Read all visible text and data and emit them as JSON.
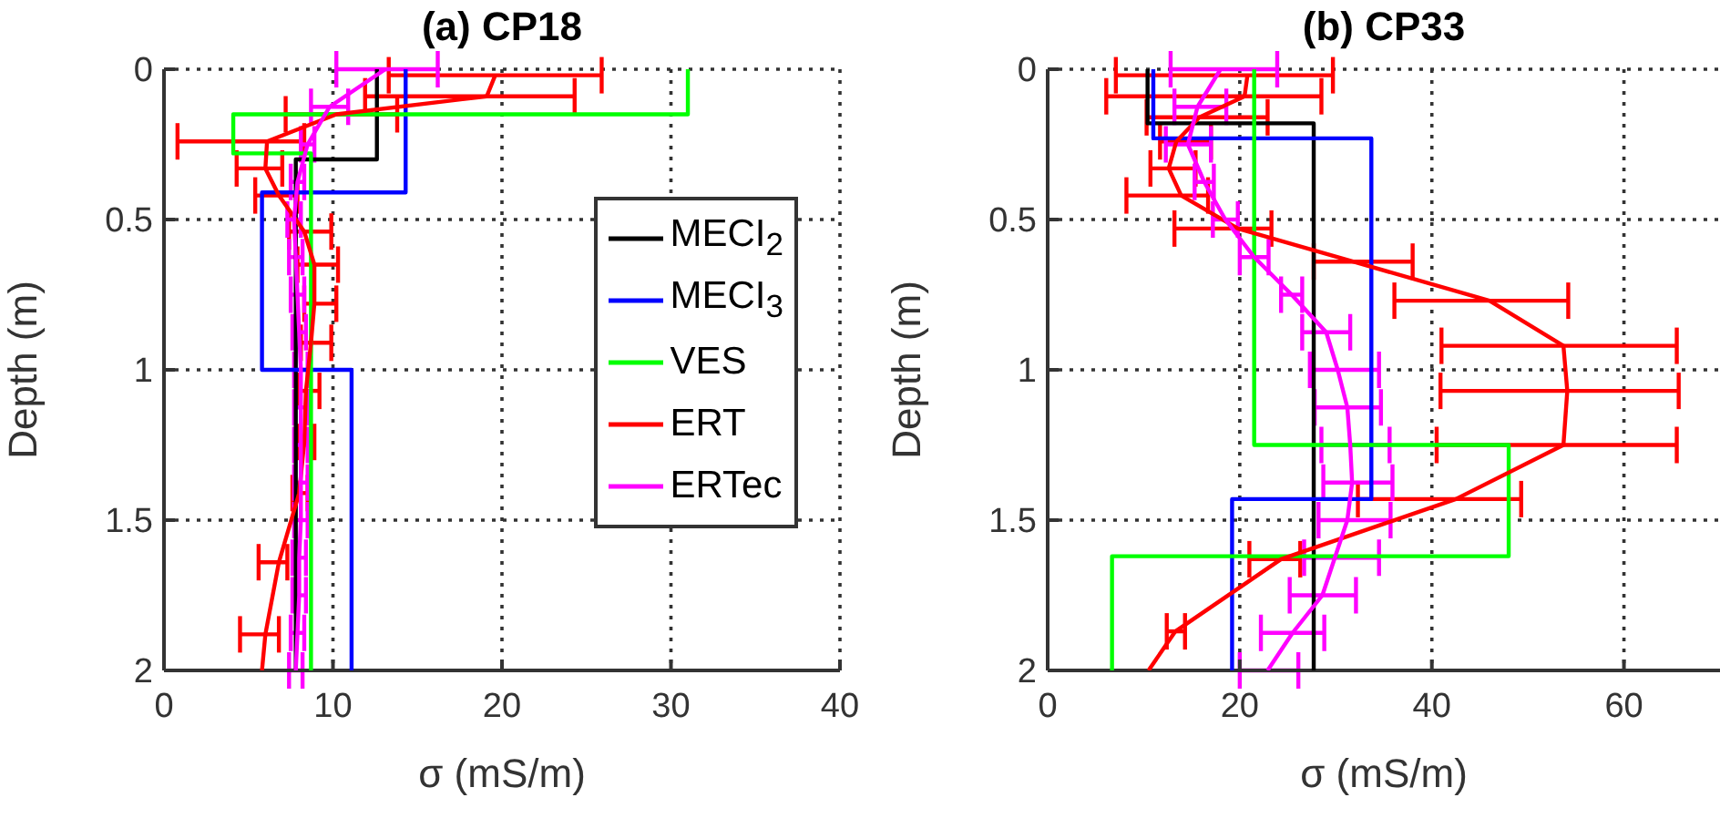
{
  "chart_data": [
    {
      "type": "line",
      "title": "(a) CP18",
      "xlabel": "σ (mS/m)",
      "ylabel": "Depth (m)",
      "xlim": [
        0,
        40
      ],
      "xticks": [
        0,
        10,
        20,
        30,
        40
      ],
      "ylim": [
        2,
        0
      ],
      "yticks": [
        0,
        0.5,
        1,
        1.5,
        2
      ],
      "grid": true,
      "legend": "right",
      "series": [
        {
          "name": "MECI$_{2}$",
          "color": "#000000",
          "x": [
            12.6,
            12.6,
            7.8,
            7.8
          ],
          "values": [
            0,
            0.3,
            0.3,
            2
          ]
        },
        {
          "name": "MECI$_{3}$",
          "color": "#0000ff",
          "x": [
            14.3,
            14.3,
            5.8,
            5.8,
            11.1,
            11.1
          ],
          "values": [
            0,
            0.41,
            0.41,
            1,
            1,
            2
          ]
        },
        {
          "name": "VES",
          "color": "#00ff00",
          "x": [
            31,
            31,
            4.1,
            4.1,
            8.7,
            8.7
          ],
          "values": [
            0,
            0.15,
            0.15,
            0.28,
            0.28,
            2
          ]
        },
        {
          "name": "ERT",
          "color": "#ff0000",
          "x": [
            19.6,
            19.1,
            10.2,
            6.1,
            6.0,
            6.8,
            8.3,
            8.9,
            8.9,
            8.7,
            8.4,
            8.3,
            8.0,
            6.8,
            6.0,
            5.8
          ],
          "values": [
            0.02,
            0.09,
            0.15,
            0.24,
            0.33,
            0.42,
            0.54,
            0.65,
            0.78,
            0.91,
            1.07,
            1.24,
            1.41,
            1.64,
            1.88,
            2
          ],
          "xerrors": [
            [
              13.3,
              25.9
            ],
            [
              11.9,
              24.3
            ],
            [
              7.2,
              13.8
            ],
            [
              0.8,
              8.3
            ],
            [
              4.3,
              7.0
            ],
            [
              5.4,
              7.9
            ],
            [
              7.4,
              9.9
            ],
            [
              7.9,
              10.3
            ],
            [
              8.3,
              10.2
            ],
            [
              8.1,
              9.9
            ],
            [
              8.0,
              9.2
            ],
            [
              7.9,
              8.9
            ],
            [
              7.6,
              8.5
            ],
            [
              5.6,
              7.3
            ],
            [
              4.5,
              6.8
            ],
            null
          ]
        },
        {
          "name": "ERTec",
          "color": "#ff00ff",
          "x": [
            13.1,
            9.8,
            8.5,
            7.9,
            7.7,
            7.8,
            7.9,
            8.0,
            8.1,
            8.1,
            8.1,
            8.1,
            8.1,
            8.0,
            8.0,
            7.9,
            7.8
          ],
          "values": [
            0,
            0.125,
            0.25,
            0.375,
            0.5,
            0.625,
            0.75,
            0.875,
            1,
            1.125,
            1.25,
            1.375,
            1.5,
            1.625,
            1.75,
            1.875,
            2
          ],
          "xerrors": [
            [
              10.2,
              16.2
            ],
            [
              8.7,
              10.9
            ],
            [
              8.1,
              8.9
            ],
            0.4,
            0.4,
            0.4,
            0.4,
            0.4,
            0.4,
            0.4,
            0.4,
            0.4,
            0.4,
            0.4,
            0.4,
            0.4,
            0.4
          ]
        }
      ]
    },
    {
      "type": "line",
      "title": "(b) CP33",
      "xlabel": "σ (mS/m)",
      "ylabel": "Depth (m)",
      "xlim": [
        0,
        70
      ],
      "xticks": [
        0,
        20,
        40,
        60
      ],
      "ylim": [
        2,
        0
      ],
      "yticks": [
        0,
        0.5,
        1,
        1.5,
        2
      ],
      "grid": true,
      "series": [
        {
          "color": "#000000",
          "x": [
            10.4,
            10.4,
            27.7,
            27.7
          ],
          "values": [
            0,
            0.18,
            0.18,
            2
          ]
        },
        {
          "color": "#0000ff",
          "x": [
            11.0,
            11.0,
            33.7,
            33.7,
            19.2,
            19.2
          ],
          "values": [
            0,
            0.23,
            0.23,
            1.43,
            1.43,
            2
          ]
        },
        {
          "color": "#00ff00",
          "x": [
            21.5,
            21.5,
            48.0,
            48.0,
            6.7,
            6.7
          ],
          "values": [
            0,
            1.25,
            1.25,
            1.62,
            1.62,
            2
          ]
        },
        {
          "color": "#ff0000",
          "x": [
            20.8,
            20.5,
            15.8,
            13.4,
            12.6,
            13.9,
            19.8,
            31.8,
            46.0,
            53.7,
            54.1,
            53.7,
            42.5,
            24.3,
            13.3,
            10.5
          ],
          "values": [
            0.02,
            0.09,
            0.16,
            0.24,
            0.33,
            0.42,
            0.53,
            0.64,
            0.77,
            0.92,
            1.07,
            1.25,
            1.43,
            1.63,
            1.87,
            2
          ],
          "xerrors": [
            [
              7.1,
              29.7
            ],
            [
              6.1,
              28.5
            ],
            [
              10.3,
              22.9
            ],
            [
              11.7,
              17.0
            ],
            [
              10.7,
              15.4
            ],
            [
              8.2,
              16.7
            ],
            [
              13.2,
              23.3
            ],
            [
              27.7,
              38.0
            ],
            [
              36.1,
              54.2
            ],
            [
              41.0,
              65.5
            ],
            [
              40.9,
              65.7
            ],
            [
              40.5,
              65.5
            ],
            [
              32.3,
              49.3
            ],
            [
              21.0,
              26.3
            ],
            [
              12.4,
              14.3
            ],
            null
          ]
        },
        {
          "color": "#ff00ff",
          "x": [
            18.0,
            15.6,
            14.6,
            16.3,
            18.5,
            21.5,
            25.4,
            29.0,
            30.2,
            31.2,
            31.5,
            31.7,
            31.2,
            29.9,
            28.6,
            25.5,
            22.9
          ],
          "values": [
            0,
            0.125,
            0.25,
            0.375,
            0.5,
            0.625,
            0.75,
            0.875,
            1,
            1.125,
            1.25,
            1.375,
            1.5,
            1.625,
            1.75,
            1.875,
            2
          ],
          "xerrors": [
            [
              12.8,
              23.9
            ],
            [
              13.2,
              18.6
            ],
            [
              12.3,
              17.0
            ],
            [
              15.3,
              17.3
            ],
            [
              17.2,
              19.8
            ],
            [
              20.0,
              23.0
            ],
            [
              24.3,
              26.5
            ],
            [
              26.5,
              31.5
            ],
            [
              27.3,
              34.5
            ],
            [
              27.8,
              34.7
            ],
            [
              28.5,
              35.6
            ],
            [
              28.7,
              35.9
            ],
            [
              28.2,
              35.7
            ],
            [
              26.7,
              34.5
            ],
            [
              25.2,
              32.1
            ],
            [
              22.2,
              28.8
            ],
            [
              20.0,
              26.1
            ]
          ]
        }
      ]
    }
  ]
}
